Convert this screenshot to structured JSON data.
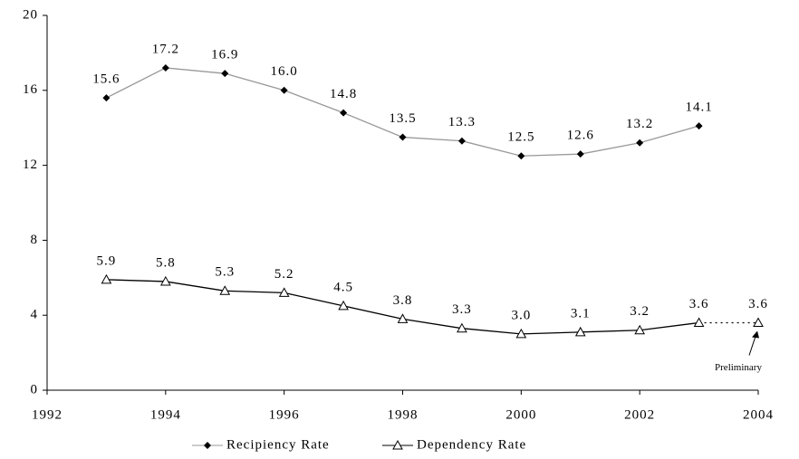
{
  "chart_data": {
    "type": "line",
    "xlim": [
      1992,
      2004
    ],
    "xticks": [
      1992,
      1994,
      1996,
      1998,
      2000,
      2002,
      2004
    ],
    "ylim": [
      0,
      20
    ],
    "yticks": [
      0,
      4,
      8,
      12,
      16,
      20
    ],
    "grid": false,
    "legend": "bottom",
    "annotation": "Preliminary",
    "series": [
      {
        "name": "Recipiency Rate",
        "color": "#999999",
        "marker": "diamond",
        "x": [
          1993,
          1994,
          1995,
          1996,
          1997,
          1998,
          1999,
          2000,
          2001,
          2002,
          2003
        ],
        "values": [
          15.6,
          17.2,
          16.9,
          16,
          14.8,
          13.5,
          13.3,
          12.5,
          12.6,
          13.2,
          14.1
        ],
        "value_labels": [
          "15.6",
          "17.2",
          "16.9",
          "16.0",
          "14.8",
          "13.5",
          "13.3",
          "12.5",
          "12.6",
          "13.2",
          "14.1"
        ]
      },
      {
        "name": "Dependency Rate",
        "color": "#000000",
        "marker": "triangle",
        "last_segment_dotted": true,
        "x": [
          1993,
          1994,
          1995,
          1996,
          1997,
          1998,
          1999,
          2000,
          2001,
          2002,
          2003,
          2004
        ],
        "values": [
          5.9,
          5.8,
          5.3,
          5.2,
          4.5,
          3.8,
          3.3,
          3,
          3.1,
          3.2,
          3.6,
          3.6
        ],
        "value_labels": [
          "5.9",
          "5.8",
          "5.3",
          "5.2",
          "4.5",
          "3.8",
          "3.3",
          "3.0",
          "3.1",
          "3.2",
          "3.6",
          "3.6"
        ]
      }
    ]
  }
}
